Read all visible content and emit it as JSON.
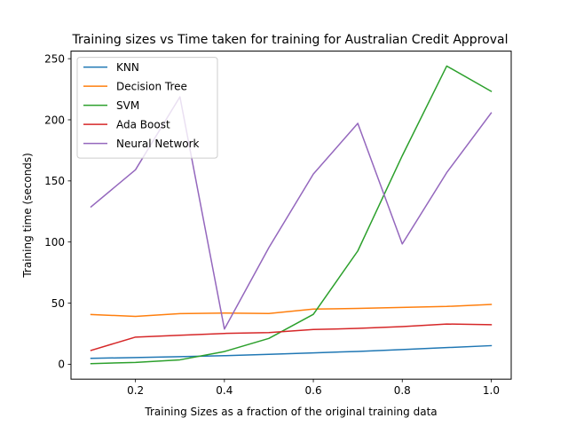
{
  "chart_data": {
    "type": "line",
    "title": "Training sizes vs Time taken for training for Australian Credit Approval",
    "xlabel": "Training Sizes as a fraction of the original training data",
    "ylabel": "Training time (seconds)",
    "xlim": [
      0.055,
      1.045
    ],
    "ylim": [
      -12.2,
      256.2
    ],
    "x_ticks": [
      0.2,
      0.4,
      0.6,
      0.8,
      1.0
    ],
    "x_tick_labels": [
      "0.2",
      "0.4",
      "0.6",
      "0.8",
      "1.0"
    ],
    "y_ticks": [
      0,
      50,
      100,
      150,
      200,
      250
    ],
    "y_tick_labels": [
      "0",
      "50",
      "100",
      "150",
      "200",
      "250"
    ],
    "grid": false,
    "legend_position": "top-left",
    "x": [
      0.1,
      0.2,
      0.3,
      0.4,
      0.5,
      0.6,
      0.7,
      0.8,
      0.9,
      1.0
    ],
    "series": [
      {
        "name": "KNN",
        "color": "#1f77b4",
        "values": [
          4.8,
          5.5,
          6.2,
          7.0,
          8.1,
          9.3,
          10.5,
          12.0,
          13.6,
          15.2
        ]
      },
      {
        "name": "Decision Tree",
        "color": "#ff7f0e",
        "values": [
          40.7,
          39.1,
          41.4,
          41.9,
          41.5,
          45.1,
          45.7,
          46.5,
          47.3,
          48.9
        ]
      },
      {
        "name": "SVM",
        "color": "#2ca02c",
        "values": [
          0.5,
          1.5,
          3.6,
          10.4,
          21.1,
          40.8,
          92.7,
          170.6,
          244.0,
          223.3
        ]
      },
      {
        "name": "Ada Boost",
        "color": "#d62728",
        "values": [
          11.3,
          22.2,
          23.7,
          25.2,
          25.9,
          28.4,
          29.3,
          30.8,
          32.9,
          32.3
        ]
      },
      {
        "name": "Neural Network",
        "color": "#9467bd",
        "values": [
          128.8,
          159.1,
          218.8,
          28.8,
          95.4,
          155.6,
          197.1,
          98.4,
          156.8,
          205.6
        ]
      }
    ]
  }
}
